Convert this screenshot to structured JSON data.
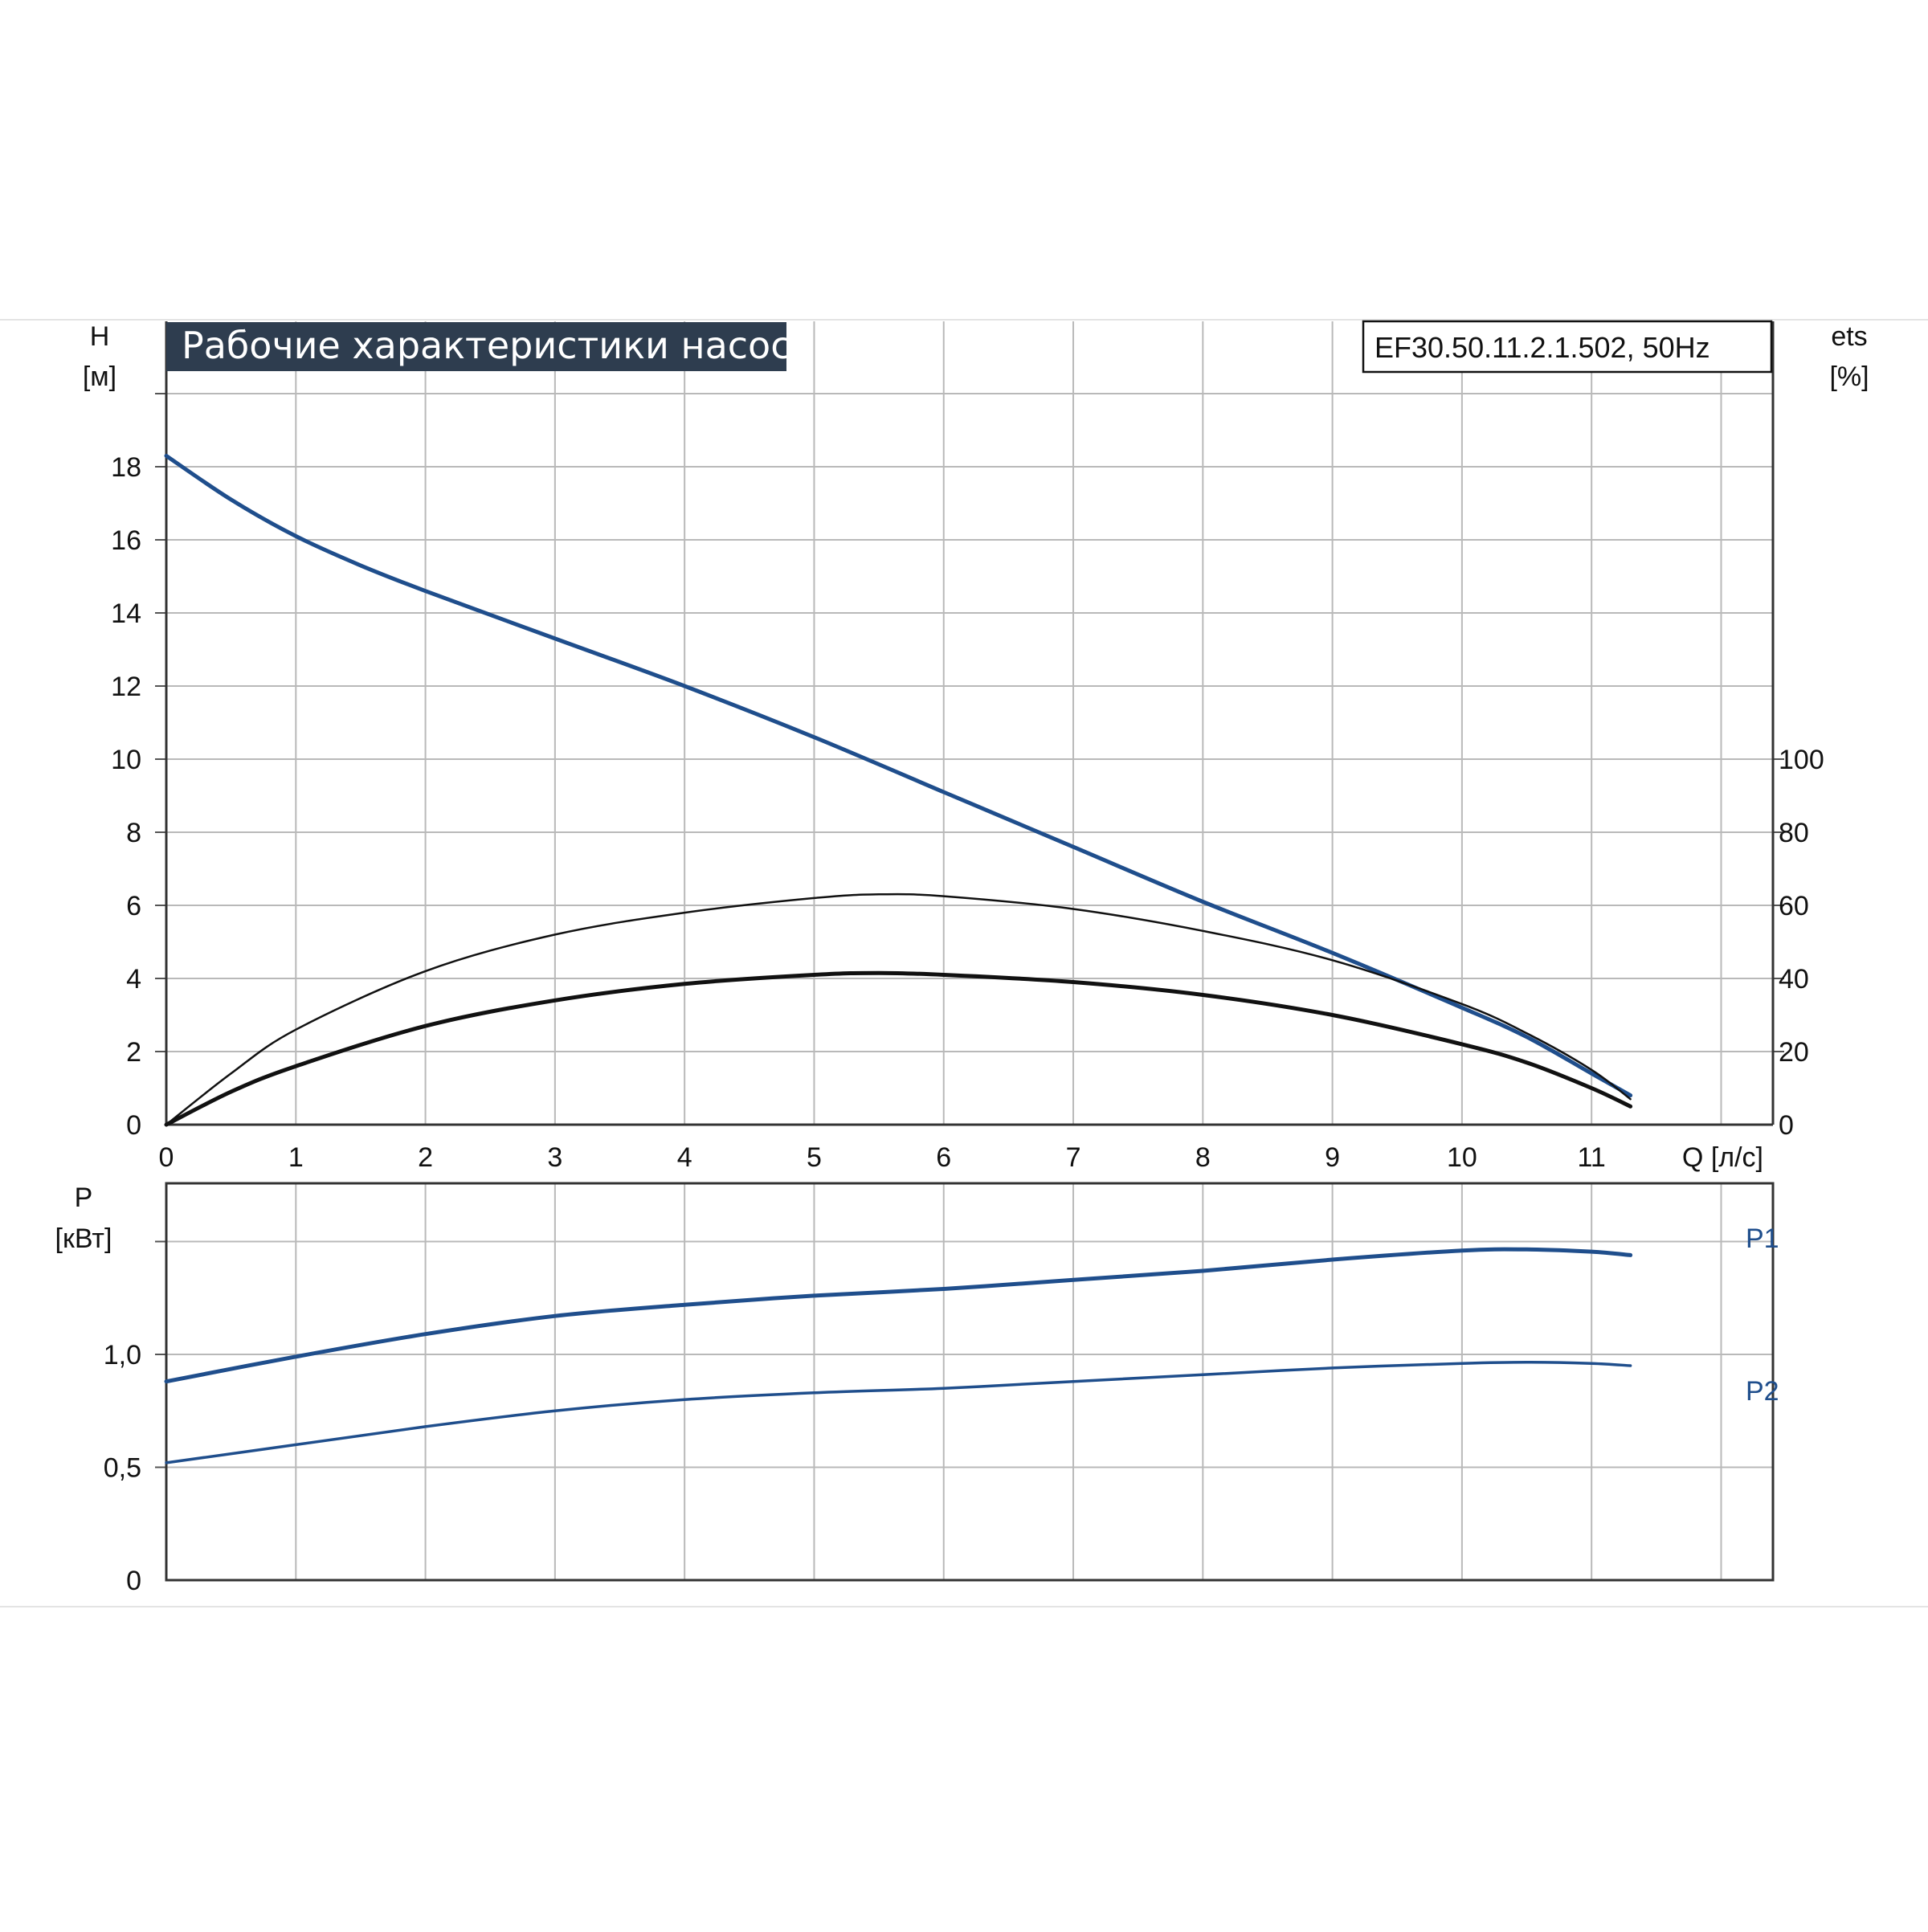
{
  "chart_data": [
    {
      "type": "line",
      "title": "Рабочие характеристики насоса",
      "model_label": "EF30.50.11.2.1.502, 50Hz",
      "xlabel": "Q [л/с]",
      "ylabel_left_line1": "H",
      "ylabel_left_line2": "[м]",
      "ylabel_right_line1": "ets",
      "ylabel_right_line2": "[%]",
      "xlim": [
        0,
        12.4
      ],
      "ylim_left": [
        0,
        20
      ],
      "ylim_right": [
        0,
        200
      ],
      "x_ticks": [
        "0",
        "1",
        "2",
        "3",
        "4",
        "5",
        "6",
        "7",
        "8",
        "9",
        "10",
        "11"
      ],
      "y_ticks_left": [
        "0",
        "2",
        "4",
        "6",
        "8",
        "10",
        "12",
        "14",
        "16",
        "18"
      ],
      "y_ticks_right": [
        "0",
        "20",
        "40",
        "60",
        "80",
        "100"
      ],
      "grid": true,
      "series": [
        {
          "axis": "left",
          "color": "#1f4e8c",
          "x": [
            0,
            0.5,
            1,
            1.5,
            2,
            3,
            4,
            5,
            6,
            7,
            8,
            9,
            10,
            10.5,
            11,
            11.3
          ],
          "values": [
            18.3,
            17.1,
            16.1,
            15.3,
            14.6,
            13.3,
            12.0,
            10.6,
            9.1,
            7.6,
            6.1,
            4.7,
            3.2,
            2.4,
            1.4,
            0.8
          ]
        },
        {
          "axis": "right",
          "color": "#111111",
          "x": [
            0,
            0.5,
            1,
            2,
            3,
            4,
            5,
            5.5,
            6,
            7,
            8,
            9,
            10,
            10.5,
            11,
            11.3
          ],
          "values": [
            0,
            14,
            26,
            42,
            52,
            58,
            62,
            63,
            62.5,
            59,
            53,
            45,
            33,
            25,
            15,
            7
          ]
        },
        {
          "axis": "right",
          "color": "#111111",
          "x": [
            0,
            0.5,
            1,
            2,
            3,
            4,
            5,
            5.5,
            6,
            7,
            8,
            9,
            10,
            10.5,
            11,
            11.3
          ],
          "values": [
            0,
            9,
            16,
            27,
            34,
            38.5,
            41,
            41.5,
            41,
            39,
            35.5,
            30,
            22,
            17,
            10,
            5
          ]
        }
      ]
    },
    {
      "type": "line",
      "ylabel_line1": "P",
      "ylabel_line2": "[кВт]",
      "xlim": [
        0,
        12.4
      ],
      "ylim": [
        0,
        1.5
      ],
      "y_ticks": [
        "0",
        "0,5",
        "1,0"
      ],
      "grid": true,
      "series": [
        {
          "name": "P1",
          "color": "#1f4e8c",
          "x": [
            0,
            1,
            2,
            3,
            4,
            5,
            6,
            7,
            8,
            9,
            10,
            10.5,
            11,
            11.3
          ],
          "values": [
            0.88,
            0.99,
            1.09,
            1.17,
            1.22,
            1.26,
            1.29,
            1.33,
            1.37,
            1.42,
            1.46,
            1.465,
            1.455,
            1.44
          ]
        },
        {
          "name": "P2",
          "color": "#1f4e8c",
          "x": [
            0,
            1,
            2,
            3,
            4,
            5,
            6,
            7,
            8,
            9,
            10,
            10.5,
            11,
            11.3
          ],
          "values": [
            0.52,
            0.6,
            0.68,
            0.75,
            0.8,
            0.83,
            0.85,
            0.88,
            0.91,
            0.94,
            0.96,
            0.965,
            0.96,
            0.95
          ]
        }
      ]
    }
  ]
}
